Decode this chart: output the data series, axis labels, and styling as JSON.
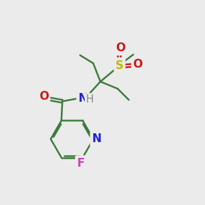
{
  "background_color": "#ebebeb",
  "bond_color": "#3d7a3d",
  "N_color": "#2020cc",
  "O_color": "#cc1a1a",
  "F_color": "#cc44bb",
  "S_color": "#bbbb00",
  "H_color": "#888888",
  "line_width": 1.8,
  "font_size": 12,
  "figsize": [
    3.0,
    3.0
  ],
  "dpi": 100,
  "xlim": [
    0,
    10
  ],
  "ylim": [
    0,
    10
  ]
}
